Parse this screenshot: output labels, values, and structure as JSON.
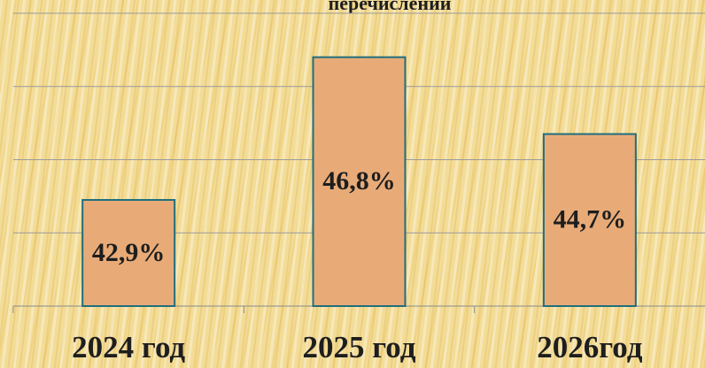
{
  "chart_data": {
    "type": "bar",
    "title": "перечислений",
    "categories": [
      "2024 год",
      "2025 год",
      "2026год"
    ],
    "values": [
      42.9,
      46.8,
      44.7
    ],
    "value_labels": [
      "42,9%",
      "46,8%",
      "44,7%"
    ],
    "color": "#e8ab78",
    "edge_color": "#1f6e7e",
    "ylim": [
      40,
      48
    ],
    "yticks": [
      40,
      42,
      44,
      46,
      48
    ],
    "grid": true
  }
}
